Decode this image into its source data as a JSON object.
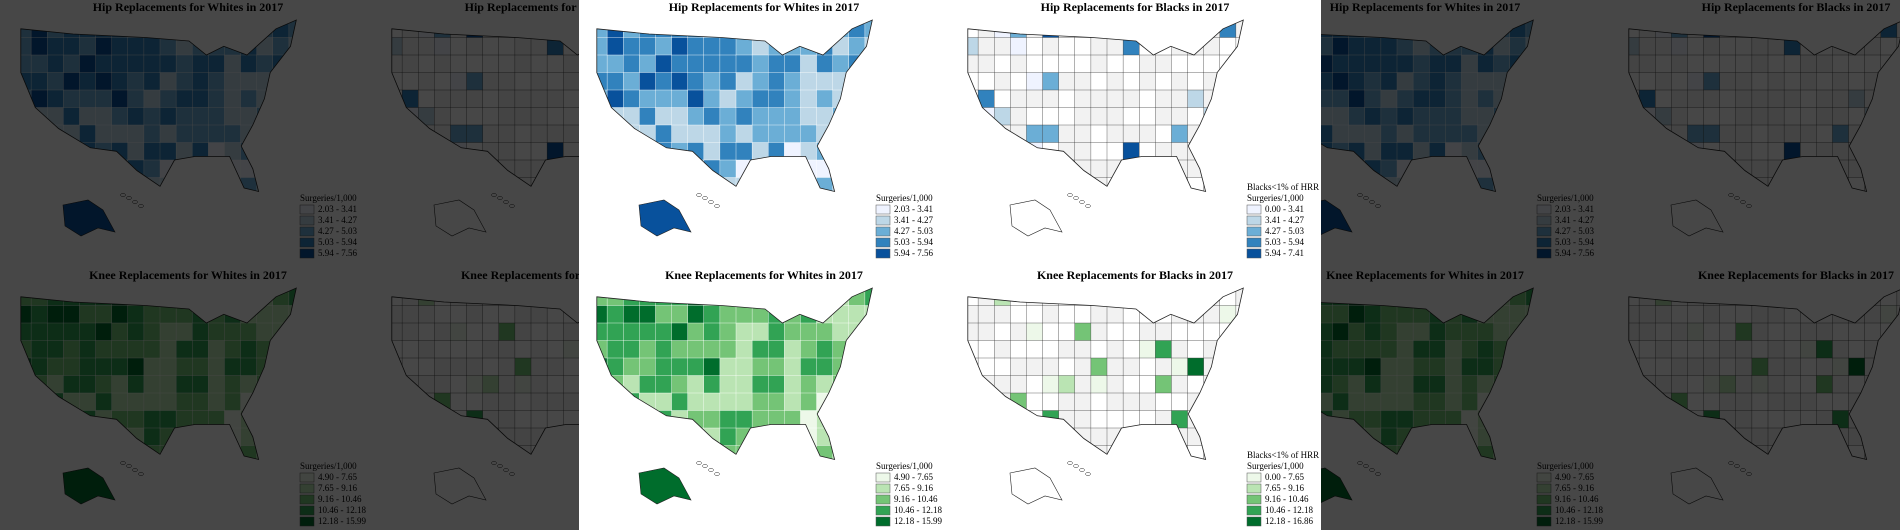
{
  "panels": [
    {
      "title": "Hip Replacements for Whites in 2017",
      "legend_title": "Surgeries/1,000",
      "legend": [
        {
          "label": "2.03 - 3.41",
          "color": "#eff3ff"
        },
        {
          "label": "3.41 - 4.27",
          "color": "#bdd7e7"
        },
        {
          "label": "4.27 - 5.03",
          "color": "#6baed6"
        },
        {
          "label": "5.03 - 5.94",
          "color": "#3182bd"
        },
        {
          "label": "5.94 - 7.56",
          "color": "#08519c"
        }
      ]
    },
    {
      "title": "Hip Replacements for Blacks in 2017",
      "note": "Blacks<1% of HRR",
      "legend_title": "Surgeries/1,000",
      "legend": [
        {
          "label": "0.00 - 3.41",
          "color": "#eff3ff"
        },
        {
          "label": "3.41 - 4.27",
          "color": "#bdd7e7"
        },
        {
          "label": "4.27 - 5.03",
          "color": "#6baed6"
        },
        {
          "label": "5.03 - 5.94",
          "color": "#3182bd"
        },
        {
          "label": "5.94 - 7.41",
          "color": "#08519c"
        }
      ]
    },
    {
      "title": "Knee Replacements for Whites in 2017",
      "legend_title": "Surgeries/1,000",
      "legend": [
        {
          "label": "4.90 - 7.65",
          "color": "#edf8e9"
        },
        {
          "label": "7.65 - 9.16",
          "color": "#bae4b3"
        },
        {
          "label": "9.16 - 10.46",
          "color": "#74c476"
        },
        {
          "label": "10.46 - 12.18",
          "color": "#31a354"
        },
        {
          "label": "12.18 - 15.99",
          "color": "#006d2c"
        }
      ]
    },
    {
      "title": "Knee Replacements for Blacks in 2017",
      "note": "Blacks<1% of HRR",
      "legend_title": "Surgeries/1,000",
      "legend": [
        {
          "label": "0.00 - 7.65",
          "color": "#edf8e9"
        },
        {
          "label": "7.65 - 9.16",
          "color": "#bae4b3"
        },
        {
          "label": "9.16 - 10.46",
          "color": "#74c476"
        },
        {
          "label": "10.46 - 12.18",
          "color": "#31a354"
        },
        {
          "label": "12.18 - 16.86",
          "color": "#006d2c"
        }
      ]
    }
  ]
}
